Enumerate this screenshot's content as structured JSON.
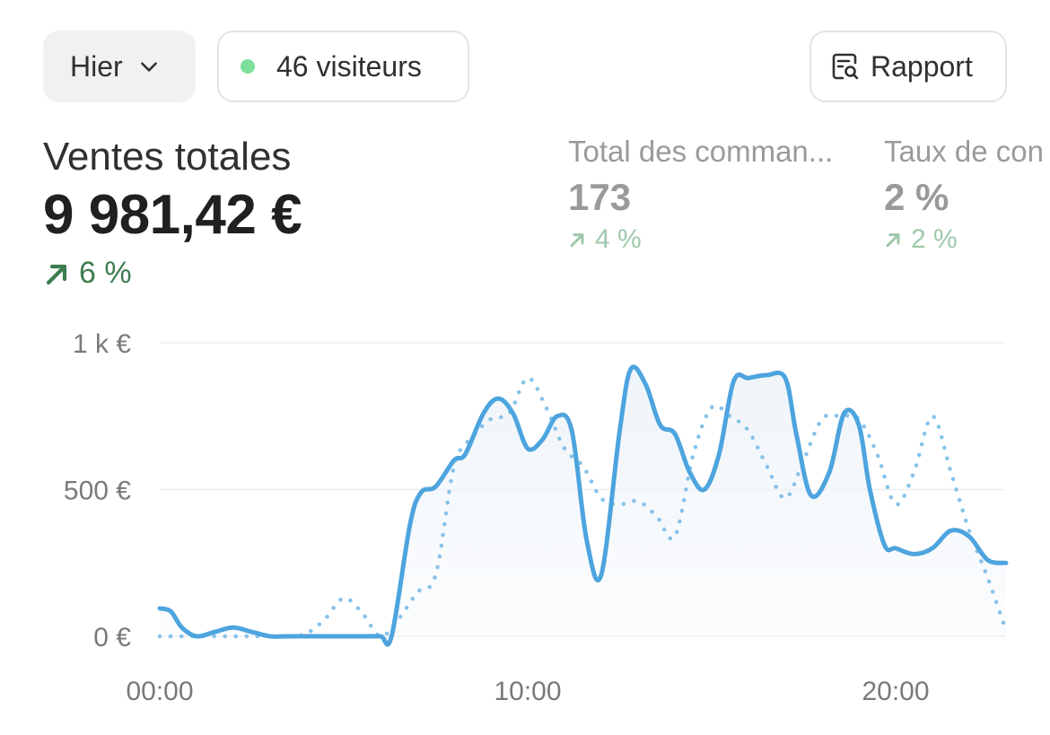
{
  "controls": {
    "date_range": "Hier",
    "visitors": "46 visiteurs",
    "report": "Rapport"
  },
  "metrics": {
    "main": {
      "label": "Ventes totales",
      "value": "9 981,42 €",
      "change": "6 %"
    },
    "orders": {
      "label": "Total des comman...",
      "value": "173",
      "change": "4 %"
    },
    "conversion": {
      "label": "Taux de con",
      "value": "2 %",
      "change": "2 %"
    }
  },
  "colors": {
    "line_current": "#4da4de",
    "line_previous": "#86c2ea",
    "positive": "#3e7d50",
    "visitors_dot": "#7ddf9a"
  },
  "chart_data": {
    "type": "line",
    "x_unit": "hour",
    "x_tick_values": [
      0,
      10,
      20
    ],
    "x_tick_labels": [
      "00:00",
      "10:00",
      "20:00"
    ],
    "y_tick_values": [
      0,
      500,
      1000
    ],
    "y_tick_labels": [
      "0 €",
      "500 €",
      "1 k €"
    ],
    "ylim": [
      0,
      1000
    ],
    "xlim": [
      0,
      23
    ],
    "grid": true,
    "series": [
      {
        "style": "solid",
        "color": "#4da4de",
        "x": [
          0,
          0.3,
          0.6,
          1,
          1.5,
          2,
          2.5,
          3,
          3.5,
          4,
          4.5,
          5,
          5.5,
          6,
          6.3,
          6.8,
          7.1,
          7.5,
          8,
          8.3,
          8.8,
          9.2,
          9.6,
          10,
          10.4,
          10.8,
          11.2,
          11.6,
          12,
          12.5,
          12.8,
          13.2,
          13.6,
          14,
          14.4,
          14.8,
          15.2,
          15.6,
          16,
          16.5,
          17,
          17.3,
          17.7,
          18.2,
          18.6,
          19,
          19.3,
          19.7,
          20,
          20.5,
          21,
          21.5,
          22,
          22.5,
          23
        ],
        "y": [
          95,
          85,
          30,
          0,
          15,
          30,
          15,
          0,
          0,
          0,
          0,
          0,
          0,
          0,
          0,
          380,
          490,
          510,
          600,
          620,
          760,
          810,
          760,
          640,
          670,
          750,
          700,
          330,
          210,
          700,
          910,
          860,
          720,
          690,
          560,
          500,
          620,
          870,
          880,
          890,
          880,
          690,
          480,
          560,
          760,
          720,
          500,
          310,
          300,
          280,
          300,
          360,
          340,
          260,
          250
        ]
      },
      {
        "style": "dotted",
        "color": "#86c2ea",
        "x": [
          0,
          0.5,
          1,
          1.5,
          2,
          2.5,
          3,
          3.5,
          4,
          4.5,
          5,
          5.5,
          6,
          6.5,
          7,
          7.5,
          8,
          8.5,
          9,
          9.5,
          10,
          10.5,
          11,
          11.5,
          12,
          12.5,
          13,
          13.5,
          14,
          14.5,
          15,
          15.5,
          16,
          16.5,
          17,
          17.5,
          18,
          18.5,
          19,
          19.5,
          20,
          20.5,
          21,
          21.5,
          22,
          22.5,
          23
        ],
        "y": [
          0,
          0,
          0,
          0,
          0,
          0,
          0,
          0,
          10,
          60,
          130,
          80,
          0,
          60,
          150,
          210,
          580,
          680,
          740,
          760,
          880,
          780,
          640,
          580,
          470,
          450,
          460,
          410,
          340,
          620,
          780,
          750,
          700,
          580,
          470,
          600,
          740,
          750,
          740,
          620,
          450,
          560,
          750,
          560,
          360,
          200,
          20
        ]
      }
    ]
  }
}
